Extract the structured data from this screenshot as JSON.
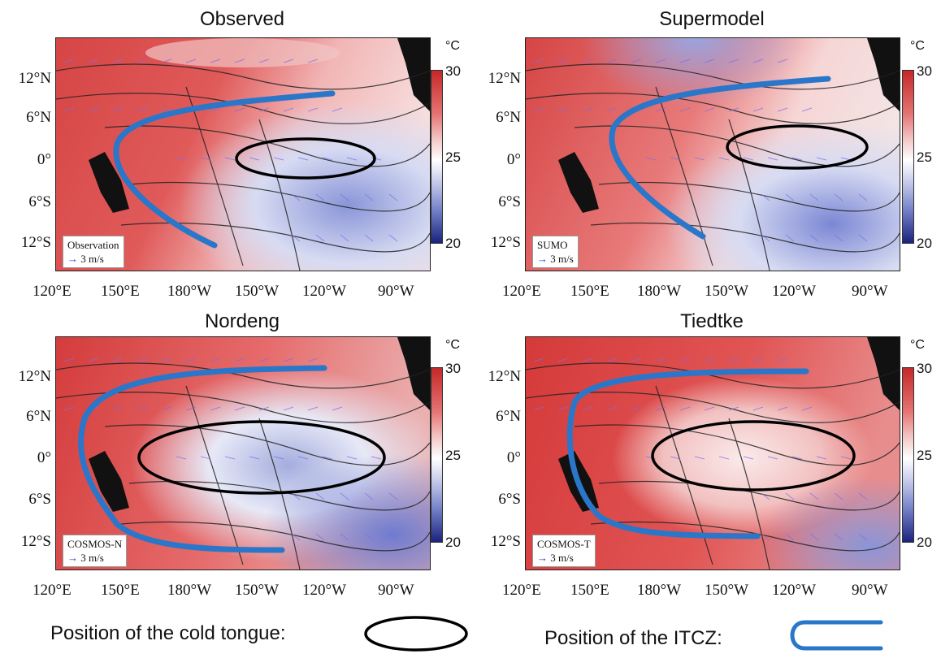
{
  "panels": [
    {
      "title": "Observed",
      "legend_name": "Observation",
      "legend_scale": "3 m/s"
    },
    {
      "title": "Supermodel",
      "legend_name": "SUMO",
      "legend_scale": "3 m/s"
    },
    {
      "title": "Nordeng",
      "legend_name": "COSMOS-N",
      "legend_scale": "3 m/s"
    },
    {
      "title": "Tiedtke",
      "legend_name": "COSMOS-T",
      "legend_scale": "3 m/s"
    }
  ],
  "lat_ticks": [
    "12°N",
    "6°N",
    "0°",
    "6°S",
    "12°S"
  ],
  "lon_ticks": [
    "120°E",
    "150°E",
    "180°W",
    "150°W",
    "120°W",
    "90°W"
  ],
  "colorbar": {
    "unit": "°C",
    "ticks": [
      "30",
      "25",
      "20"
    ],
    "range": [
      20,
      30
    ],
    "colors": [
      "#c62828",
      "#ffffff",
      "#1a237e"
    ]
  },
  "legend": {
    "cold_tongue_label": "Position of the cold tongue:",
    "itcz_label": "Position of the ITCZ:",
    "cold_tongue_color": "#000000",
    "itcz_color": "#2a77c9"
  }
}
